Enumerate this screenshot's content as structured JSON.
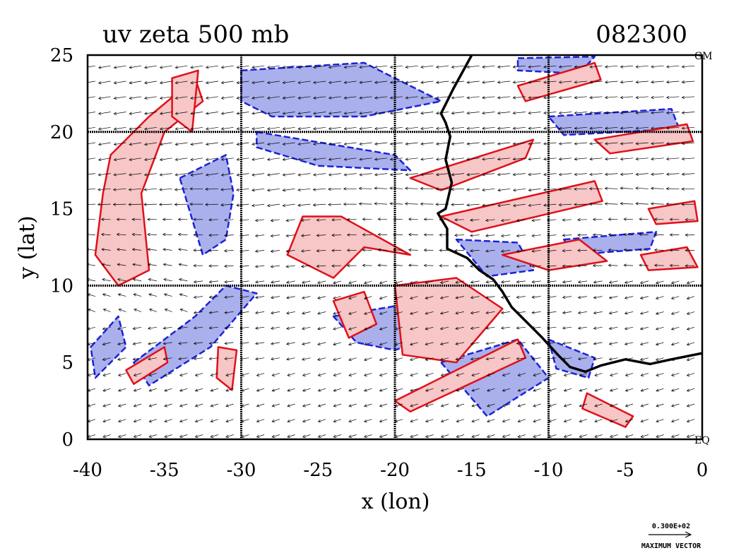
{
  "title": "uv zeta 500 mb",
  "timestamp": "082300",
  "corner_labels": {
    "top_right": "GM",
    "bottom_right": "EQ"
  },
  "vector_key": {
    "magnitude": "0.300E+02",
    "label": "MAXIMUM VECTOR"
  },
  "chart_data": {
    "type": "heatmap",
    "title": "uv zeta 500 mb",
    "xlabel": "x (lon)",
    "ylabel": "y (lat)",
    "xlim": [
      -40,
      0
    ],
    "ylim": [
      0,
      25
    ],
    "x_ticks": [
      "-40",
      "-35",
      "-30",
      "-25",
      "-20",
      "-15",
      "-10",
      "-5",
      "0"
    ],
    "y_ticks": [
      "0",
      "5",
      "10",
      "15",
      "20",
      "25"
    ],
    "grid_lines_x": [
      -30,
      -20,
      -10
    ],
    "grid_lines_y": [
      10,
      20
    ],
    "colors": {
      "positive_fill": "#f7c6c6",
      "positive_contour": "#e0101a",
      "negative_fill": "#aab0ec",
      "negative_contour": "#1a22d8",
      "vectors": "#000000",
      "coastline": "#000000"
    },
    "positive_regions": [
      [
        [
          -38.5,
          18.5
        ],
        [
          -36,
          21
        ],
        [
          -33,
          23.5
        ],
        [
          -32.5,
          22
        ],
        [
          -35,
          20
        ],
        [
          -36.5,
          16
        ],
        [
          -36,
          11
        ],
        [
          -38,
          10
        ],
        [
          -39.5,
          12
        ],
        [
          -39,
          16
        ]
      ],
      [
        [
          -34.5,
          23.5
        ],
        [
          -32.8,
          24
        ],
        [
          -33.2,
          20
        ],
        [
          -34.5,
          21
        ]
      ],
      [
        [
          -31.5,
          6
        ],
        [
          -30.3,
          5.8
        ],
        [
          -30.6,
          3.2
        ],
        [
          -31.6,
          4
        ]
      ],
      [
        [
          -27,
          12
        ],
        [
          -24,
          10.5
        ],
        [
          -22,
          12.5
        ],
        [
          -19,
          12
        ],
        [
          -23.5,
          14.5
        ],
        [
          -26,
          14.5
        ]
      ],
      [
        [
          -24,
          9
        ],
        [
          -22,
          9.6
        ],
        [
          -21.2,
          7.5
        ],
        [
          -23,
          6.6
        ]
      ],
      [
        [
          -20,
          10
        ],
        [
          -16,
          10.5
        ],
        [
          -13,
          8.5
        ],
        [
          -16,
          5
        ],
        [
          -19.5,
          5.5
        ]
      ],
      [
        [
          -20,
          2.5
        ],
        [
          -12,
          6.5
        ],
        [
          -11.5,
          5.3
        ],
        [
          -19,
          1.8
        ]
      ],
      [
        [
          -19,
          17
        ],
        [
          -11,
          19.5
        ],
        [
          -11.5,
          18.3
        ],
        [
          -17,
          16.2
        ]
      ],
      [
        [
          -17,
          14.5
        ],
        [
          -7,
          16.8
        ],
        [
          -6.5,
          15.5
        ],
        [
          -15,
          13.5
        ]
      ],
      [
        [
          -13,
          12
        ],
        [
          -8,
          13
        ],
        [
          -6.2,
          11.6
        ],
        [
          -10,
          11
        ]
      ],
      [
        [
          -4,
          12
        ],
        [
          -1,
          12.5
        ],
        [
          -0.3,
          11.2
        ],
        [
          -3.5,
          11
        ]
      ],
      [
        [
          -3.5,
          15
        ],
        [
          -0.5,
          15.5
        ],
        [
          -0.3,
          14.2
        ],
        [
          -3,
          14
        ]
      ],
      [
        [
          -7,
          19.5
        ],
        [
          -1,
          20.5
        ],
        [
          -0.6,
          19.4
        ],
        [
          -6,
          18.6
        ]
      ],
      [
        [
          -12,
          23
        ],
        [
          -7,
          24.5
        ],
        [
          -6.6,
          23.4
        ],
        [
          -11.5,
          22
        ]
      ],
      [
        [
          -7.5,
          3
        ],
        [
          -4.5,
          1.5
        ],
        [
          -5,
          0.8
        ],
        [
          -7.8,
          2
        ]
      ],
      [
        [
          -37.5,
          4.5
        ],
        [
          -35,
          6
        ],
        [
          -34.8,
          5
        ],
        [
          -37,
          3.6
        ]
      ]
    ],
    "negative_regions": [
      [
        [
          -30,
          24
        ],
        [
          -22,
          24.5
        ],
        [
          -17,
          22
        ],
        [
          -22,
          21
        ],
        [
          -28,
          21
        ],
        [
          -30,
          22
        ]
      ],
      [
        [
          -29,
          20
        ],
        [
          -20,
          18.5
        ],
        [
          -19,
          17.5
        ],
        [
          -25,
          17.8
        ],
        [
          -29,
          19
        ]
      ],
      [
        [
          -37,
          5
        ],
        [
          -33,
          8
        ],
        [
          -31,
          10
        ],
        [
          -29,
          9.5
        ],
        [
          -32,
          6
        ],
        [
          -36,
          3.5
        ]
      ],
      [
        [
          -34,
          17
        ],
        [
          -31,
          18.5
        ],
        [
          -30.5,
          16
        ],
        [
          -31,
          13
        ],
        [
          -32.5,
          12
        ]
      ],
      [
        [
          -24,
          8
        ],
        [
          -18,
          9
        ],
        [
          -16.5,
          7
        ],
        [
          -20,
          5.8
        ],
        [
          -22.5,
          6.3
        ]
      ],
      [
        [
          -17,
          5
        ],
        [
          -12,
          6.5
        ],
        [
          -10,
          4
        ],
        [
          -14,
          1.5
        ]
      ],
      [
        [
          -16,
          13
        ],
        [
          -12,
          12.8
        ],
        [
          -11,
          11
        ],
        [
          -14,
          10.6
        ]
      ],
      [
        [
          -10,
          21
        ],
        [
          -2,
          21.5
        ],
        [
          -1.5,
          20.2
        ],
        [
          -9,
          19.8
        ]
      ],
      [
        [
          -9,
          13
        ],
        [
          -3,
          13.5
        ],
        [
          -3.4,
          12.4
        ],
        [
          -8.5,
          12
        ]
      ],
      [
        [
          -10,
          6.5
        ],
        [
          -7,
          5.3
        ],
        [
          -7.4,
          4
        ],
        [
          -9.5,
          4.6
        ]
      ],
      [
        [
          -39.8,
          6
        ],
        [
          -38,
          8
        ],
        [
          -37.5,
          6
        ],
        [
          -39.5,
          4
        ]
      ],
      [
        [
          -12,
          24.8
        ],
        [
          -7,
          24.9
        ],
        [
          -8,
          23.8
        ],
        [
          -12,
          24
        ]
      ]
    ],
    "coastline": [
      [
        -15,
        25
      ],
      [
        -16.2,
        22.8
      ],
      [
        -17,
        21.2
      ],
      [
        -16.7,
        20.6
      ],
      [
        -16.4,
        19.7
      ],
      [
        -16.7,
        18.2
      ],
      [
        -16.3,
        16.7
      ],
      [
        -16.7,
        15
      ],
      [
        -17.2,
        14.7
      ],
      [
        -16.6,
        13.7
      ],
      [
        -16.6,
        12.4
      ],
      [
        -15.3,
        11.8
      ],
      [
        -14.5,
        11
      ],
      [
        -13.6,
        10.4
      ],
      [
        -13,
        9.6
      ],
      [
        -12.4,
        8.6
      ],
      [
        -11.4,
        7.6
      ],
      [
        -10.4,
        6.6
      ],
      [
        -9.4,
        5.5
      ],
      [
        -8.6,
        4.7
      ],
      [
        -7.6,
        4.4
      ],
      [
        -6.6,
        4.8
      ],
      [
        -5,
        5.2
      ],
      [
        -3.4,
        4.9
      ],
      [
        -2,
        5.2
      ],
      [
        0,
        5.6
      ]
    ]
  }
}
